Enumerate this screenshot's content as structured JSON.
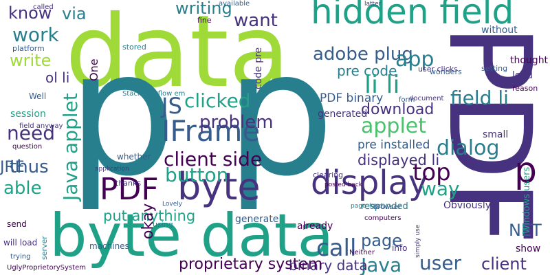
{
  "words": [
    "data",
    "p",
    "p",
    "PDF",
    "byte data",
    "hidden field",
    "display",
    "byte",
    "PDF",
    "IFrame",
    "p",
    "adobe plug",
    "pre code",
    "app",
    "li li",
    "field li",
    "PDF binary",
    "generated",
    "download",
    "applet",
    "dialog",
    "top",
    "way",
    "displayed li",
    "pre installed",
    "client side",
    "button",
    "problem",
    "clicked",
    "JS",
    "writing",
    "want",
    "via",
    "know",
    "work",
    "write",
    "ol li",
    "need",
    "thus",
    "able",
    "JRE",
    "Java applet",
    "put anything",
    "okay",
    "call",
    "Java",
    "user",
    "client",
    "page",
    "binary data",
    "proprietary system",
    "NET",
    "Obviously",
    "generate",
    "already",
    "responded",
    "session",
    "small",
    "show",
    "load",
    "thought",
    "called",
    "available",
    "latter",
    "fine",
    "stored",
    "platform",
    "field anyway",
    "question",
    "Well",
    "application",
    "whether",
    "thanks",
    "Lovely",
    "using",
    "machines",
    "UglyProprietorySystem",
    "server",
    "clearing",
    "posted back",
    "page_load",
    "computers",
    "browser",
    "info",
    "Neither",
    "simply use",
    "Windows users",
    "reason",
    "setting",
    "StackOverflow em",
    "wonders",
    "user clicks",
    "document",
    "form",
    "code pre",
    "One",
    "without",
    "send",
    "will load",
    "trying"
  ]
}
